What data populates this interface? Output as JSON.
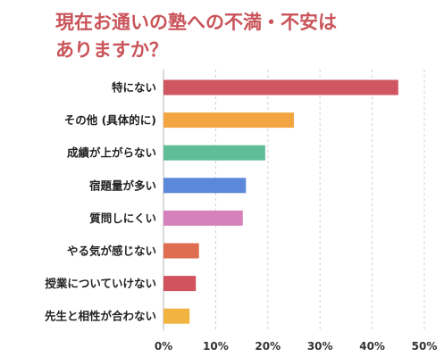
{
  "chart_data": {
    "type": "bar",
    "orientation": "horizontal",
    "title_lines": [
      "現在お通いの塾への不満・不安は",
      "ありますか？"
    ],
    "categories": [
      "特にない",
      "その他 (具体的に)",
      "成績が上がらない",
      "宿題量が多い",
      "質問しにくい",
      "やる気が感じない",
      "授業についていけない",
      "先生と相性が合わない"
    ],
    "values": [
      45,
      25,
      19.5,
      15.8,
      15.2,
      6.8,
      6.2,
      5
    ],
    "colors": [
      "#d05661",
      "#f2a541",
      "#5fbe98",
      "#5b88d8",
      "#d681bb",
      "#df6e50",
      "#d1535e",
      "#f2b440"
    ],
    "xlim": [
      0,
      50
    ],
    "xticks": [
      "0%",
      "10%",
      "20%",
      "30%",
      "40%",
      "50%"
    ],
    "grid": true,
    "title_color": "#c9545a"
  }
}
